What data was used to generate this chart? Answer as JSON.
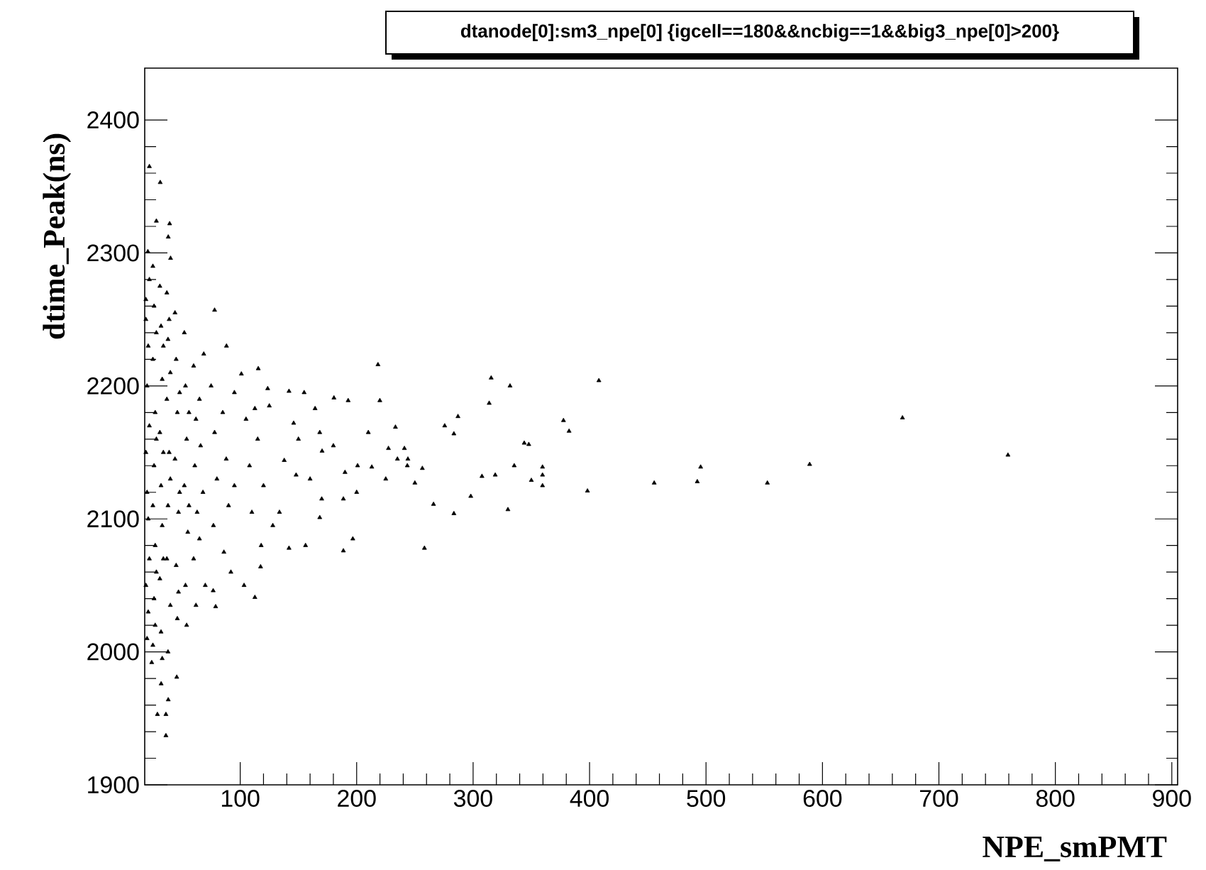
{
  "chart_data": {
    "type": "scatter",
    "title": "dtanode[0]:sm3_npe[0] {igcell==180&&ncbig==1&&big3_npe[0]>200}",
    "xlabel": "NPE_smPMT",
    "ylabel": "dtime_Peak(ns)",
    "color": "#000000",
    "marker": "triangle",
    "xlim": [
      18,
      905
    ],
    "ylim": [
      1900,
      2439
    ],
    "xticks": [
      100,
      200,
      300,
      400,
      500,
      600,
      700,
      800,
      900
    ],
    "yticks": [
      1900,
      2000,
      2100,
      2200,
      2300,
      2400
    ],
    "x": [
      315.5,
      331.7,
      408,
      313.8,
      668.7,
      759.3,
      589,
      552.7,
      495.4,
      492.5,
      455.5,
      398.2,
      377.6,
      382.4,
      343.9,
      347.8,
      335.3,
      359.6,
      359.6,
      359.6,
      350,
      329.9,
      319,
      307.6,
      298,
      283.5,
      275.6,
      283.5,
      287,
      266,
      258.2,
      256.4,
      241,
      244,
      250,
      22,
      31.3,
      28,
      39.4,
      38.2,
      20.7,
      40.2,
      78,
      88.2,
      68.7,
      115.5,
      218.3,
      101,
      141.9,
      154.9,
      180.5,
      192.7,
      219.9,
      123.6,
      112.6,
      233.3,
      164.3,
      168.3,
      145.9,
      227.3,
      243.5,
      213,
      200.8,
      188.6,
      170.3,
      137.8,
      148,
      133.7,
      168.3,
      141.9,
      156.1,
      188.6,
      196.7,
      117.5,
      112.6,
      103.3,
      78.9,
      76.8,
      45.5,
      38.2,
      36.2,
      28.9,
      36.2,
      32.1,
      24,
      19,
      19,
      20,
      19,
      21,
      19,
      20,
      22,
      21,
      22,
      20,
      22,
      21,
      25,
      26,
      25,
      27,
      26,
      25,
      27,
      26,
      25,
      28,
      28,
      28,
      27,
      31,
      32,
      33,
      31,
      32,
      33,
      31,
      32,
      34,
      34,
      34,
      33,
      37,
      38,
      37,
      39,
      38,
      37,
      40,
      38,
      40,
      40,
      39,
      44,
      45,
      46,
      44,
      47,
      45,
      46,
      48,
      48,
      47,
      52,
      53,
      54,
      52,
      55,
      53,
      56,
      56,
      54,
      60,
      62,
      61,
      63,
      60,
      65,
      66,
      68,
      65,
      70,
      62,
      75,
      78,
      80,
      77,
      85,
      88,
      90,
      86,
      95,
      95,
      92,
      105,
      108,
      110,
      115,
      120,
      125,
      128,
      118,
      150,
      160,
      170,
      180,
      190,
      200,
      210,
      225,
      235
    ],
    "values": [
      2206,
      2200,
      2204,
      2187,
      2176,
      2148,
      2141,
      2127,
      2139,
      2128,
      2127,
      2121,
      2174,
      2166,
      2157,
      2156,
      2140,
      2139,
      2133,
      2125,
      2129,
      2107,
      2133,
      2132,
      2117,
      2104,
      2170,
      2164,
      2177,
      2111,
      2078,
      2138,
      2153,
      2145,
      2127,
      2365,
      2353,
      2324,
      2322,
      2312,
      2301,
      2296,
      2257,
      2230,
      2224,
      2213,
      2216,
      2209,
      2196,
      2195,
      2191,
      2189,
      2189,
      2198,
      2183,
      2169,
      2183,
      2165,
      2172,
      2153,
      2140,
      2139,
      2140,
      2115,
      2151,
      2144,
      2133,
      2105,
      2101,
      2078,
      2080,
      2076,
      2085,
      2064,
      2041,
      2050,
      2034,
      2046,
      1981,
      1964,
      1953,
      1953,
      1937,
      1976,
      1992,
      2265,
      2250,
      2200,
      2150,
      2100,
      2050,
      2010,
      2280,
      2230,
      2170,
      2120,
      2070,
      2030,
      2290,
      2260,
      2220,
      2180,
      2140,
      2110,
      2080,
      2040,
      2005,
      2240,
      2160,
      2060,
      2020,
      2275,
      2245,
      2205,
      2165,
      2125,
      2095,
      2055,
      2015,
      2230,
      2150,
      2070,
      1995,
      2270,
      2235,
      2190,
      2150,
      2110,
      2070,
      2035,
      2000,
      2210,
      2130,
      2250,
      2255,
      2220,
      2180,
      2145,
      2105,
      2065,
      2025,
      2195,
      2120,
      2045,
      2240,
      2200,
      2160,
      2125,
      2090,
      2050,
      2180,
      2110,
      2020,
      2215,
      2175,
      2140,
      2105,
      2070,
      2190,
      2155,
      2120,
      2085,
      2050,
      2035,
      2200,
      2165,
      2130,
      2095,
      2180,
      2145,
      2110,
      2075,
      2195,
      2125,
      2060,
      2175,
      2140,
      2105,
      2160,
      2125,
      2185,
      2095,
      2080,
      2160,
      2130,
      2115,
      2155,
      2135,
      2120,
      2165,
      2130,
      2145
    ]
  }
}
